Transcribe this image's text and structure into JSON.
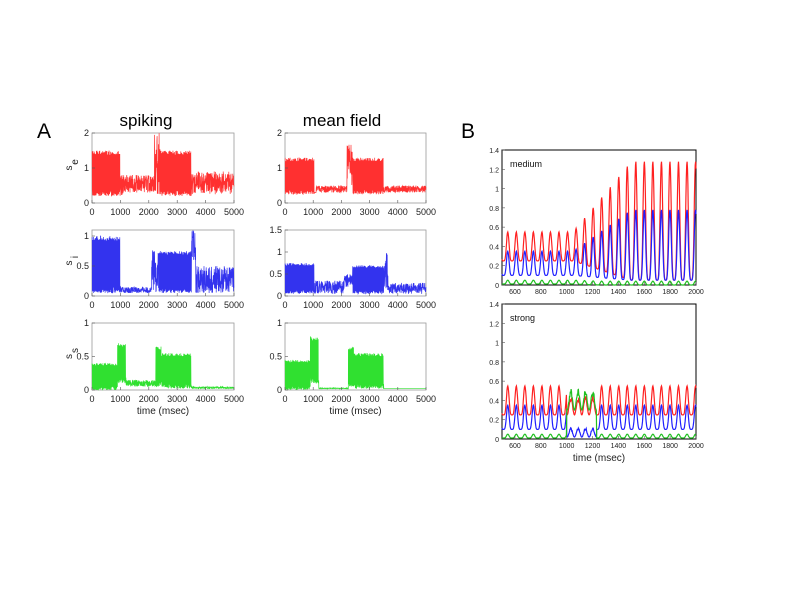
{
  "figure": {
    "panel_a_label": "A",
    "panel_b_label": "B",
    "col1_title": "spiking",
    "col2_title": "mean field"
  },
  "chart_data": [
    {
      "id": "A-spiking-se",
      "type": "line",
      "ylabel_main": "s",
      "ylabel_sub": "e",
      "xlabel": "",
      "xlim": [
        0,
        5000
      ],
      "ylim": [
        0,
        2
      ],
      "xticks": [
        "0",
        "1000",
        "2000",
        "3000",
        "4000",
        "5000"
      ],
      "yticks": [
        "0",
        "1",
        "2"
      ],
      "series": [
        {
          "color": "#ff3030",
          "profile": [
            [
              0,
              0.2,
              1.5,
              25
            ],
            [
              1000,
              0.2,
              0.8,
              0
            ],
            [
              1100,
              0.3,
              0.8,
              0
            ],
            [
              2200,
              0.2,
              2.0,
              0
            ],
            [
              2400,
              0.2,
              1.5,
              25
            ],
            [
              3500,
              0.25,
              0.9,
              0
            ],
            [
              5000,
              0.2,
              0.5,
              0
            ]
          ]
        }
      ]
    },
    {
      "id": "A-mf-se",
      "type": "line",
      "ylabel_main": "",
      "ylabel_sub": "",
      "xlabel": "",
      "xlim": [
        0,
        5000
      ],
      "ylim": [
        0,
        2
      ],
      "xticks": [
        "0",
        "1000",
        "2000",
        "3000",
        "4000",
        "5000"
      ],
      "yticks": [
        "0",
        "1",
        "2"
      ],
      "series": [
        {
          "color": "#ff3030",
          "profile": [
            [
              0,
              0.25,
              1.3,
              25
            ],
            [
              1050,
              0.3,
              0.3,
              0
            ],
            [
              1100,
              0.3,
              0.5,
              0
            ],
            [
              2200,
              0.5,
              1.7,
              0
            ],
            [
              2400,
              0.25,
              1.3,
              25
            ],
            [
              3500,
              0.3,
              0.5,
              0
            ],
            [
              5000,
              0.35,
              0.5,
              0
            ]
          ]
        }
      ]
    },
    {
      "id": "A-spiking-si",
      "type": "line",
      "ylabel_main": "s",
      "ylabel_sub": "i",
      "xlabel": "",
      "xlim": [
        0,
        5000
      ],
      "ylim": [
        0,
        1.1
      ],
      "xticks": [
        "0",
        "1000",
        "2000",
        "3000",
        "4000",
        "5000"
      ],
      "yticks": [
        "0",
        "0.5",
        "1"
      ],
      "series": [
        {
          "color": "#3333ee",
          "profile": [
            [
              0,
              0.05,
              1.0,
              25
            ],
            [
              1000,
              0.05,
              0.15,
              0
            ],
            [
              2100,
              0.05,
              0.8,
              0
            ],
            [
              2350,
              0.05,
              0.75,
              25
            ],
            [
              3500,
              0.6,
              1.1,
              0
            ],
            [
              3650,
              0.05,
              0.5,
              0
            ],
            [
              5000,
              0.05,
              0.55,
              0
            ]
          ]
        }
      ]
    },
    {
      "id": "A-mf-si",
      "type": "line",
      "ylabel_main": "",
      "ylabel_sub": "",
      "xlabel": "",
      "xlim": [
        0,
        5000
      ],
      "ylim": [
        0,
        1.5
      ],
      "xticks": [
        "0",
        "1000",
        "2000",
        "3000",
        "4000",
        "5000"
      ],
      "yticks": [
        "0",
        "0.5",
        "1",
        "1.5"
      ],
      "series": [
        {
          "color": "#3333ee",
          "profile": [
            [
              0,
              0.05,
              0.75,
              25
            ],
            [
              1050,
              0.05,
              0.35,
              0
            ],
            [
              2100,
              0.2,
              0.5,
              0
            ],
            [
              2400,
              0.05,
              0.7,
              25
            ],
            [
              3500,
              0.1,
              1.0,
              0
            ],
            [
              3650,
              0.05,
              0.3,
              0
            ],
            [
              5000,
              0.05,
              0.3,
              0
            ]
          ]
        }
      ]
    },
    {
      "id": "A-spiking-ss",
      "type": "line",
      "ylabel_main": "s",
      "ylabel_sub": "s",
      "xlabel": "time (msec)",
      "xlim": [
        0,
        5000
      ],
      "ylim": [
        0,
        1
      ],
      "xticks": [
        "0",
        "1000",
        "2000",
        "3000",
        "4000",
        "5000"
      ],
      "yticks": [
        "0",
        "0.5",
        "1"
      ],
      "series": [
        {
          "color": "#30e030",
          "profile": [
            [
              0,
              0.0,
              0.4,
              25
            ],
            [
              900,
              0.1,
              0.7,
              25
            ],
            [
              1200,
              0.05,
              0.15,
              0
            ],
            [
              2250,
              0.05,
              0.65,
              25
            ],
            [
              2450,
              0.02,
              0.55,
              25
            ],
            [
              3500,
              0.02,
              0.05,
              0
            ],
            [
              5000,
              0.05,
              0.15,
              0
            ]
          ]
        }
      ]
    },
    {
      "id": "A-mf-ss",
      "type": "line",
      "ylabel_main": "",
      "ylabel_sub": "",
      "xlabel": "time (msec)",
      "xlim": [
        0,
        5000
      ],
      "ylim": [
        0,
        1
      ],
      "xticks": [
        "0",
        "1000",
        "2000",
        "3000",
        "4000",
        "5000"
      ],
      "yticks": [
        "0",
        "0.5",
        "1"
      ],
      "series": [
        {
          "color": "#30e030",
          "profile": [
            [
              0,
              0.0,
              0.45,
              25
            ],
            [
              900,
              0.1,
              0.8,
              25
            ],
            [
              1200,
              0.02,
              0.03,
              0
            ],
            [
              2250,
              0.05,
              0.65,
              25
            ],
            [
              2450,
              0.02,
              0.55,
              25
            ],
            [
              3500,
              0.02,
              0.02,
              0
            ],
            [
              5000,
              0.02,
              0.02,
              0
            ]
          ]
        }
      ]
    },
    {
      "id": "B-medium",
      "type": "line",
      "inset_label": "medium",
      "xlabel": "",
      "xlim": [
        500,
        2000
      ],
      "ylim": [
        0,
        1.4
      ],
      "xticks": [
        "600",
        "800",
        "1000",
        "1200",
        "1400",
        "1600",
        "1800",
        "2000"
      ],
      "yticks": [
        "0",
        "0.2",
        "0.4",
        "0.6",
        "0.8",
        "1",
        "1.2",
        "1.4"
      ],
      "series": [
        {
          "color": "#ff2020",
          "osc": {
            "period": 66,
            "before": [
              0.25,
              0.55
            ],
            "after": [
              0.05,
              1.28
            ],
            "switch": 1050,
            "ramp": 450
          }
        },
        {
          "color": "#2020ff",
          "osc": {
            "period": 66,
            "before": [
              0.1,
              0.35
            ],
            "after": [
              0.05,
              0.78
            ],
            "switch": 1050,
            "ramp": 450
          }
        },
        {
          "color": "#20c020",
          "osc": {
            "period": 66,
            "before": [
              0.01,
              0.05
            ],
            "after": [
              0.0,
              0.04
            ],
            "switch": 1050,
            "ramp": 200
          }
        }
      ]
    },
    {
      "id": "B-strong",
      "type": "line",
      "inset_label": "strong",
      "xlabel": "time (msec)",
      "xlim": [
        500,
        2000
      ],
      "ylim": [
        0,
        1.4
      ],
      "xticks": [
        "600",
        "800",
        "1000",
        "1200",
        "1400",
        "1600",
        "1800",
        "2000"
      ],
      "yticks": [
        "0",
        "0.2",
        "0.4",
        "0.6",
        "0.8",
        "1",
        "1.2",
        "1.4"
      ],
      "series": [
        {
          "color": "#ff2020",
          "osc": {
            "period": 66,
            "before": [
              0.25,
              0.55
            ],
            "after": [
              0.25,
              0.55
            ],
            "burst": [
              1000,
              1230,
              0.25,
              0.45
            ]
          }
        },
        {
          "color": "#2020ff",
          "osc": {
            "period": 66,
            "before": [
              0.1,
              0.35
            ],
            "after": [
              0.1,
              0.35
            ],
            "burst": [
              1000,
              1230,
              0.02,
              0.12
            ]
          }
        },
        {
          "color": "#20c020",
          "osc": {
            "period": 66,
            "before": [
              0.01,
              0.05
            ],
            "after": [
              0.01,
              0.05
            ],
            "burst": [
              1000,
              1230,
              0.3,
              0.52
            ]
          }
        }
      ]
    }
  ]
}
